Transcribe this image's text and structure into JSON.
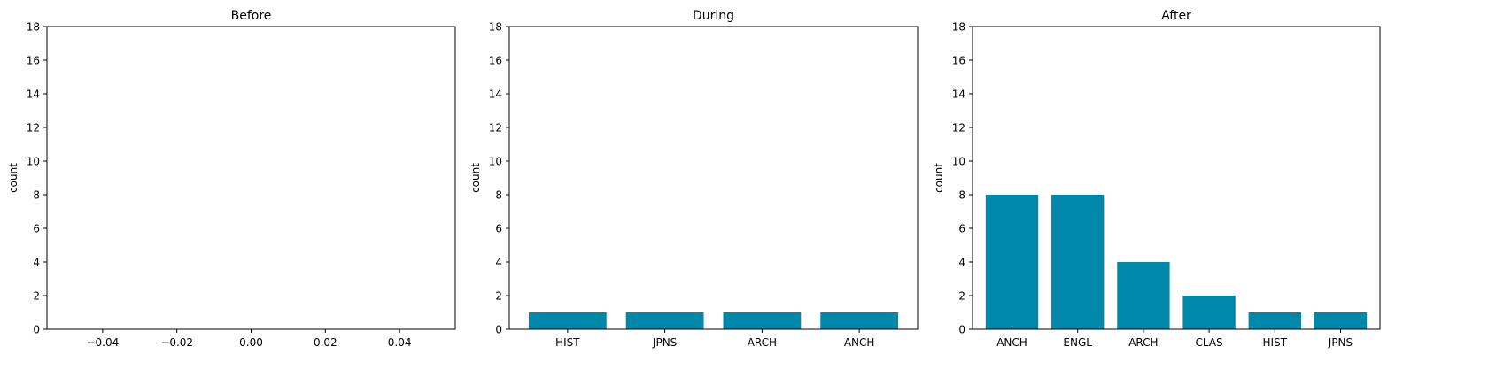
{
  "chart_data": [
    {
      "type": "bar",
      "title": "Before",
      "xlabel": "",
      "ylabel": "count",
      "ylim": [
        0,
        18
      ],
      "yticks": [
        0,
        2,
        4,
        6,
        8,
        10,
        12,
        14,
        16,
        18
      ],
      "xlim": [
        -0.055,
        0.055
      ],
      "xticks": [
        "−0.04",
        "−0.02",
        "0.00",
        "0.02",
        "0.04"
      ],
      "xtick_values": [
        -0.04,
        -0.02,
        0.0,
        0.02,
        0.04
      ],
      "categories": [],
      "values": [],
      "bar_color": "#0088aa"
    },
    {
      "type": "bar",
      "title": "During",
      "xlabel": "",
      "ylabel": "count",
      "ylim": [
        0,
        18
      ],
      "yticks": [
        0,
        2,
        4,
        6,
        8,
        10,
        12,
        14,
        16,
        18
      ],
      "categories": [
        "HIST",
        "JPNS",
        "ARCH",
        "ANCH"
      ],
      "values": [
        1,
        1,
        1,
        1
      ],
      "bar_color": "#0088aa"
    },
    {
      "type": "bar",
      "title": "After",
      "xlabel": "",
      "ylabel": "count",
      "ylim": [
        0,
        18
      ],
      "yticks": [
        0,
        2,
        4,
        6,
        8,
        10,
        12,
        14,
        16,
        18
      ],
      "categories": [
        "ANCH",
        "ENGL",
        "ARCH",
        "CLAS",
        "HIST",
        "JPNS"
      ],
      "values": [
        8,
        8,
        4,
        2,
        1,
        1
      ],
      "bar_color": "#0088aa"
    }
  ]
}
